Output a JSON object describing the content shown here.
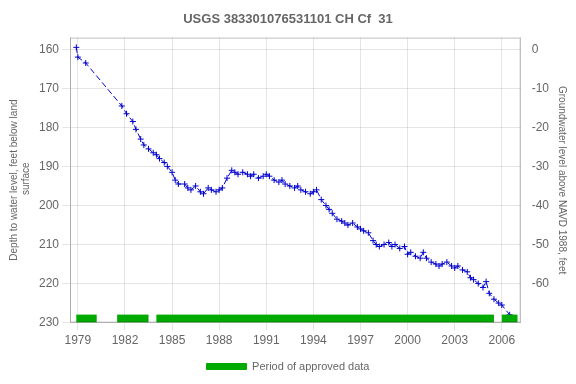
{
  "chart_data": {
    "type": "line",
    "title": "USGS 383301076531101 CH Cf  31",
    "ylabel": "Depth to water level, feet below land\n surface",
    "y2label": "Groundwater level above NAVD 1988, feet",
    "x": [
      1978.9,
      1979.0,
      1979.5,
      1981.8,
      1982.1,
      1982.5,
      1982.7,
      1983.0,
      1983.2,
      1983.5,
      1983.8,
      1984.0,
      1984.2,
      1984.5,
      1984.7,
      1985.0,
      1985.2,
      1985.4,
      1985.8,
      1986.0,
      1986.2,
      1986.5,
      1986.8,
      1987.0,
      1987.3,
      1987.5,
      1987.8,
      1988.0,
      1988.2,
      1988.5,
      1988.8,
      1989.0,
      1989.2,
      1989.5,
      1989.8,
      1990.0,
      1990.2,
      1990.5,
      1990.8,
      1991.0,
      1991.2,
      1991.5,
      1991.8,
      1992.0,
      1992.2,
      1992.5,
      1992.8,
      1993.0,
      1993.2,
      1993.5,
      1993.8,
      1994.0,
      1994.2,
      1994.5,
      1994.8,
      1995.0,
      1995.2,
      1995.5,
      1995.8,
      1996.0,
      1996.2,
      1996.5,
      1996.8,
      1997.0,
      1997.2,
      1997.5,
      1997.8,
      1998.0,
      1998.2,
      1998.5,
      1998.8,
      1999.0,
      1999.2,
      1999.5,
      1999.8,
      2000.0,
      2000.2,
      2000.5,
      2000.8,
      2001.0,
      2001.2,
      2001.5,
      2001.8,
      2002.0,
      2002.2,
      2002.5,
      2002.8,
      2003.0,
      2003.2,
      2003.5,
      2003.8,
      2004.0,
      2004.2,
      2004.5,
      2004.8,
      2005.0,
      2005.2,
      2005.5,
      2005.8,
      2006.0,
      2006.5
    ],
    "series": [
      {
        "color": "#0000cc",
        "line_style": "dashed",
        "marker": "plus",
        "values": [
          159.5,
          162.0,
          163.5,
          174.5,
          176.5,
          178.5,
          180.5,
          183.0,
          184.5,
          185.5,
          186.5,
          187.0,
          188.0,
          189.0,
          190.0,
          191.5,
          193.5,
          194.5,
          194.5,
          195.5,
          196.0,
          195.0,
          196.5,
          197.0,
          195.5,
          196.0,
          196.5,
          196.0,
          195.5,
          193.0,
          191.0,
          191.5,
          192.0,
          191.5,
          192.0,
          192.5,
          192.0,
          193.0,
          192.5,
          192.0,
          192.5,
          193.5,
          194.0,
          193.5,
          194.5,
          195.0,
          195.5,
          195.0,
          196.0,
          196.5,
          197.0,
          196.5,
          196.0,
          198.5,
          200.0,
          201.0,
          202.0,
          203.5,
          204.0,
          204.5,
          205.0,
          204.5,
          205.5,
          206.0,
          206.5,
          207.0,
          209.0,
          210.0,
          210.5,
          210.0,
          209.5,
          210.5,
          210.0,
          211.0,
          210.5,
          212.5,
          212.0,
          213.0,
          213.5,
          212.0,
          213.5,
          214.5,
          215.0,
          215.5,
          215.0,
          214.5,
          215.5,
          216.0,
          215.5,
          216.5,
          217.0,
          218.5,
          219.0,
          220.0,
          221.0,
          219.5,
          222.5,
          224.0,
          225.0,
          225.5,
          228.0
        ]
      },
      {
        "name": "Period of approved data",
        "color": "#00aa00",
        "type": "bar",
        "ranges": [
          [
            1978.9,
            1980.2
          ],
          [
            1981.5,
            1983.5
          ],
          [
            1984.0,
            2005.5
          ],
          [
            2006.0,
            2007.0
          ]
        ]
      }
    ],
    "xlim": [
      1978.5,
      2007.2
    ],
    "xticks": [
      1979,
      1982,
      1985,
      1988,
      1991,
      1994,
      1997,
      2000,
      2003,
      2006
    ],
    "ylim": [
      230,
      157
    ],
    "yticks": [
      160,
      170,
      180,
      190,
      200,
      210,
      220,
      230
    ],
    "y2lim": [
      -70,
      3
    ],
    "y2ticks": [
      0,
      -10,
      -20,
      -30,
      -40,
      -50,
      -60
    ],
    "grid": true,
    "legend": "bottom"
  }
}
